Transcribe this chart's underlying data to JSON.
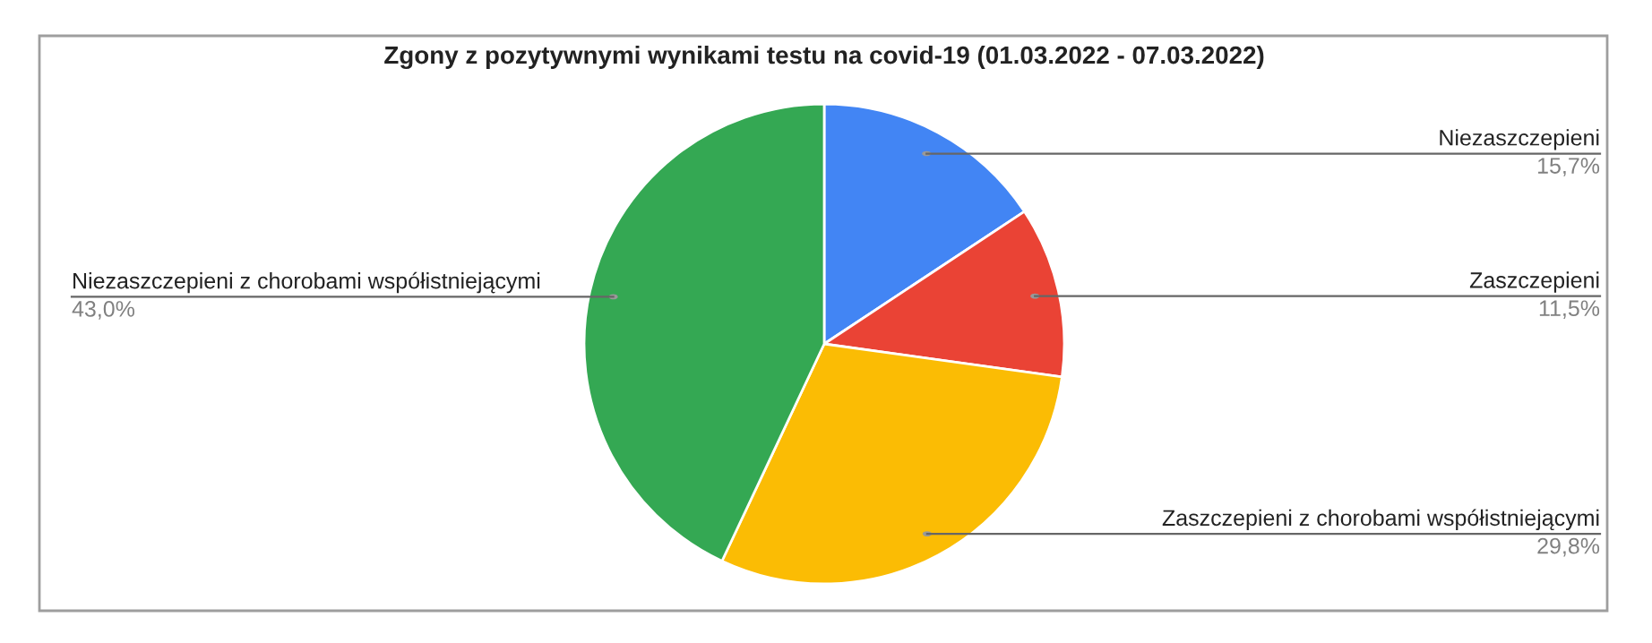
{
  "chart_data": {
    "type": "pie",
    "title": "Zgony z pozytywnymi wynikami testu na covid-19 (01.03.2022 - 07.03.2022)",
    "categories": [
      "Niezaszczepieni",
      "Zaszczepieni",
      "Zaszczepieni z chorobami współistniejącymi",
      "Niezaszczepieni z chorobami współistniejącymi"
    ],
    "values": [
      15.7,
      11.5,
      29.8,
      43.0
    ],
    "value_labels": [
      "15,7%",
      "11,5%",
      "29,8%",
      "43,0%"
    ],
    "colors": [
      "#4285f4",
      "#ea4335",
      "#fbbc04",
      "#34a853"
    ],
    "legend": false
  }
}
